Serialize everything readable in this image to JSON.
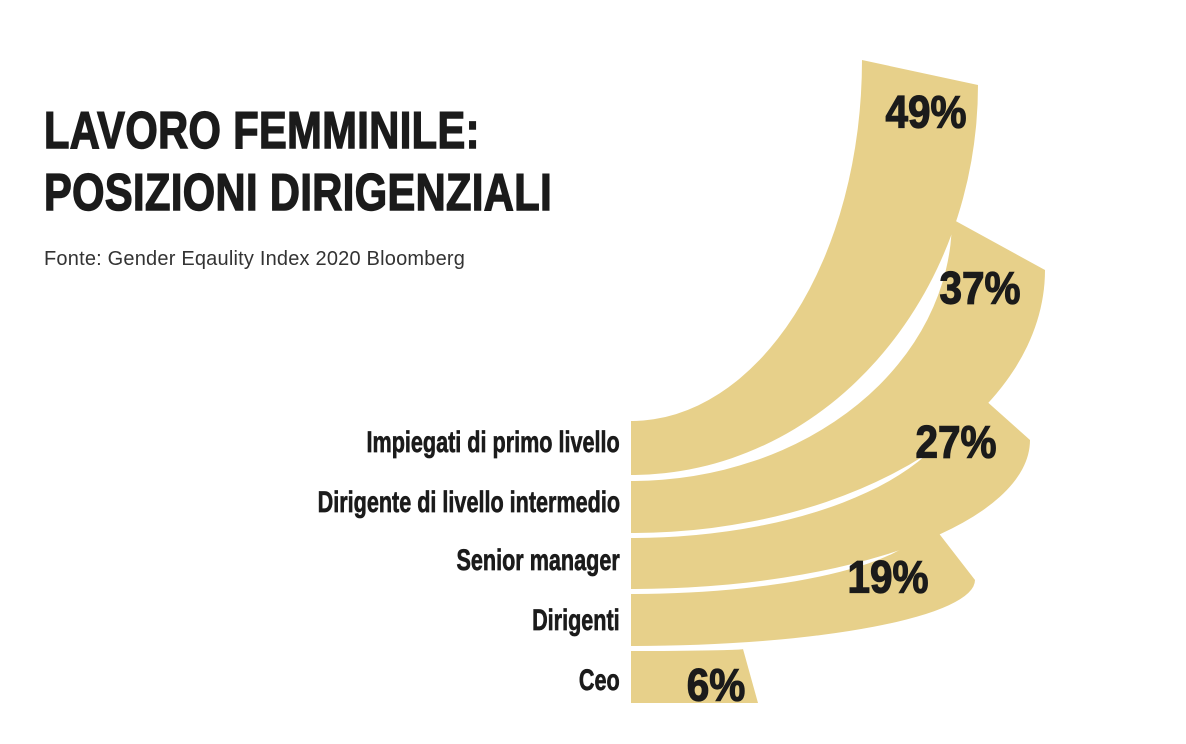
{
  "header": {
    "title_lines": [
      "LAVORO FEMMINILE:",
      "POSIZIONI DIRIGENZIALI"
    ],
    "source": "Fonte: Gender Eqaulity Index 2020 Bloomberg"
  },
  "chart_data": {
    "type": "bar",
    "variant": "radial-fan",
    "title": "LAVORO FEMMINILE: POSIZIONI DIRIGENZIALI",
    "source": "Fonte: Gender Eqaulity Index 2020 Bloomberg",
    "categories": [
      "Impiegati di primo livello",
      "Dirigente di livello intermedio",
      "Senior manager",
      "Dirigenti",
      "Ceo"
    ],
    "values": [
      49,
      37,
      27,
      19,
      6
    ],
    "value_labels": [
      "49%",
      "37%",
      "27%",
      "19%",
      "6%"
    ],
    "unit": "%",
    "legend": "none",
    "grid": "off",
    "colors": {
      "bar": "#e7d08a",
      "text": "#1b1b1b",
      "background": "#ffffff"
    }
  }
}
